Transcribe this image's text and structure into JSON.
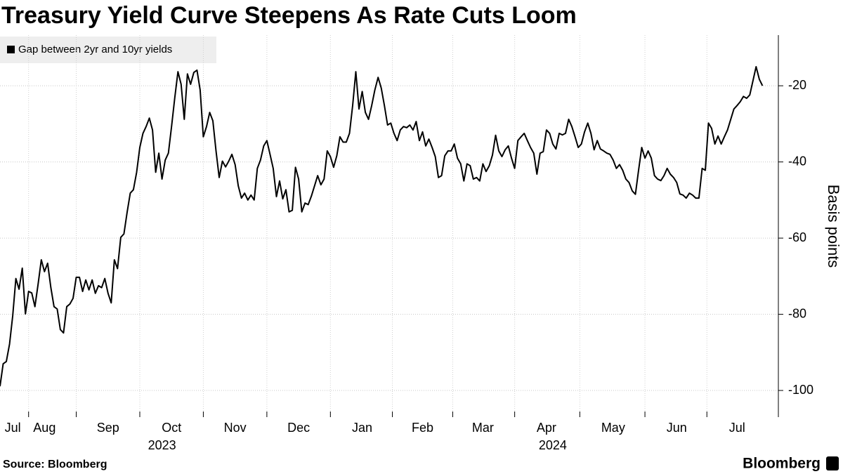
{
  "chart_data": {
    "type": "line",
    "title": "Treasury Yield Curve Steepens As Rate Cuts Loom",
    "y_axis_label": "Basis points",
    "source": "Source:  Bloomberg",
    "logo": "Bloomberg",
    "series": [
      {
        "name": "Gap between 2yr and 10yr yields",
        "color": "#000000",
        "values": [
          -98.9,
          -93,
          -92.4,
          -87.8,
          -80.4,
          -70.6,
          -73.4,
          -67.9,
          -79.9,
          -74,
          -74.4,
          -78,
          -72,
          -65.7,
          -68.8,
          -66.6,
          -73,
          -78,
          -78.6,
          -84,
          -84.9,
          -78,
          -77.3,
          -75.8,
          -70.3,
          -70.3,
          -74,
          -71,
          -73.6,
          -71,
          -74.5,
          -72.5,
          -73,
          -70.6,
          -74.5,
          -77,
          -65.7,
          -68,
          -59.8,
          -58.9,
          -53.3,
          -48.2,
          -47.3,
          -42.7,
          -36.2,
          -32.5,
          -30.7,
          -28.5,
          -31.6,
          -42.7,
          -37.7,
          -44.5,
          -39.5,
          -37.7,
          -30.7,
          -23.3,
          -16.3,
          -19.6,
          -28.8,
          -16.9,
          -19.6,
          -16.5,
          -15.9,
          -21.1,
          -33.4,
          -30.7,
          -27,
          -29.2,
          -37.1,
          -44.1,
          -39.8,
          -41.3,
          -39.8,
          -38,
          -40.7,
          -46.3,
          -49.5,
          -48.2,
          -50,
          -48.7,
          -50,
          -41.7,
          -39.5,
          -35.8,
          -34.4,
          -38,
          -41.7,
          -49.1,
          -45,
          -49.7,
          -47.3,
          -53.1,
          -52.7,
          -41.4,
          -44.5,
          -53.1,
          -50.8,
          -51.2,
          -49,
          -46.3,
          -43.6,
          -46,
          -44.5,
          -37.1,
          -38.6,
          -41.4,
          -38.4,
          -33.4,
          -34.8,
          -34.8,
          -32.5,
          -25.2,
          -16.3,
          -26.1,
          -21.5,
          -27,
          -28.8,
          -25.2,
          -21.1,
          -17.8,
          -20.6,
          -25.2,
          -30.3,
          -29.8,
          -32.5,
          -34.4,
          -31.6,
          -30.7,
          -31,
          -30.3,
          -31.6,
          -29.4,
          -34.4,
          -32.1,
          -35.8,
          -34,
          -36.2,
          -38.6,
          -44.1,
          -43.6,
          -38.4,
          -37.1,
          -37.1,
          -35.3,
          -39,
          -40.5,
          -45,
          -40.5,
          -41,
          -44.5,
          -44.1,
          -45,
          -40.5,
          -42.5,
          -41,
          -38.2,
          -33,
          -37.1,
          -38.6,
          -36.8,
          -35.8,
          -39,
          -41.7,
          -34.4,
          -33.4,
          -32.5,
          -34.4,
          -36.2,
          -37.7,
          -43.2,
          -37.7,
          -37.3,
          -31.6,
          -32.5,
          -35.3,
          -36.6,
          -32.5,
          -32.9,
          -32.5,
          -28.8,
          -30.7,
          -33.4,
          -36.2,
          -35.3,
          -32.1,
          -29.8,
          -32.5,
          -36.8,
          -34.4,
          -36.6,
          -37.1,
          -37.7,
          -38,
          -39.5,
          -41.7,
          -40.7,
          -42.2,
          -44.5,
          -45.4,
          -47.6,
          -48.5,
          -42.2,
          -36.2,
          -39,
          -37.1,
          -39,
          -43.6,
          -44.5,
          -44.9,
          -43.6,
          -41.7,
          -43.2,
          -44.1,
          -45.4,
          -48.4,
          -48.7,
          -49.5,
          -48.2,
          -48.7,
          -49.5,
          -49.5,
          -41.7,
          -42.2,
          -29.8,
          -31.2,
          -35.3,
          -33.2,
          -35.3,
          -33.4,
          -31.6,
          -28.8,
          -26.1,
          -25.2,
          -24.2,
          -22.8,
          -23.3,
          -22.4,
          -18.7,
          -15,
          -18.3,
          -20
        ]
      }
    ],
    "xlim": [
      0,
      245
    ],
    "xticks": [
      {
        "value": 4,
        "label": "Jul"
      },
      {
        "value": 14,
        "label": "Aug"
      },
      {
        "value": 34,
        "label": "Sep"
      },
      {
        "value": 54,
        "label": "Oct"
      },
      {
        "value": 74,
        "label": "Nov"
      },
      {
        "value": 94,
        "label": "Dec"
      },
      {
        "value": 114,
        "label": "Jan"
      },
      {
        "value": 133,
        "label": "Feb"
      },
      {
        "value": 152,
        "label": "Mar"
      },
      {
        "value": 172,
        "label": "Apr"
      },
      {
        "value": 193,
        "label": "May"
      },
      {
        "value": 213,
        "label": "Jun"
      },
      {
        "value": 232,
        "label": "Jul"
      }
    ],
    "year_ticks": [
      {
        "value": 51,
        "label": "2023"
      },
      {
        "value": 174,
        "label": "2024"
      }
    ],
    "ylim": [
      -107,
      -6.7
    ],
    "yticks": [
      -20,
      -40,
      -60,
      -80,
      -100
    ],
    "grid": true,
    "legend": "upper-left"
  }
}
